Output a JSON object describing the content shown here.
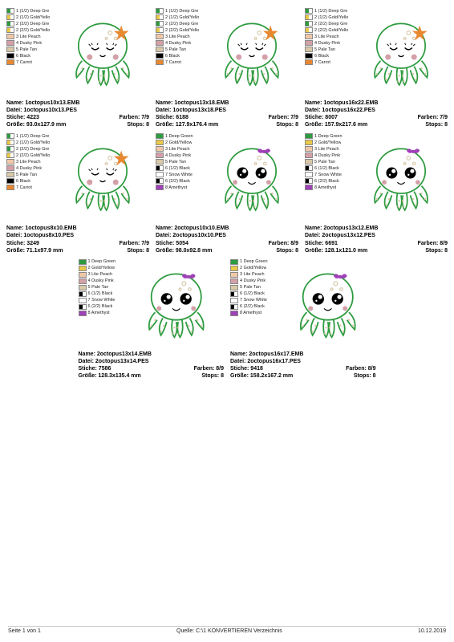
{
  "page": {
    "left": "Seite 1 von 1",
    "center": "Quelle: C:\\1 KONVERTIEREN Verzeichnis",
    "right": "10.12.2019"
  },
  "palette_a": [
    {
      "c": "#2d9b3f",
      "half": true,
      "t": "1 (1/2) Deep Gre"
    },
    {
      "c": "#e8c94a",
      "half": true,
      "t": "2 (1/2) Gold/Yello"
    },
    {
      "c": "#2d9b3f",
      "half": true,
      "t": "2 (2/2) Deep Gre"
    },
    {
      "c": "#e8c94a",
      "half": true,
      "t": "2 (2/2) Gold/Yello"
    },
    {
      "c": "#f0c8a8",
      "half": false,
      "t": "3 Lite Peach"
    },
    {
      "c": "#d4a0a8",
      "half": false,
      "t": "4 Dusky Pink"
    },
    {
      "c": "#d8c8a8",
      "half": false,
      "t": "5 Pale Tan"
    },
    {
      "c": "#000000",
      "half": false,
      "t": "6 Black"
    },
    {
      "c": "#e88830",
      "half": false,
      "t": "7 Carrot"
    }
  ],
  "palette_b": [
    {
      "c": "#2d9b3f",
      "half": false,
      "t": "1 Deep Green"
    },
    {
      "c": "#e8c94a",
      "half": false,
      "t": "2 Gold/Yellow"
    },
    {
      "c": "#f0c8a8",
      "half": false,
      "t": "3 Lite Peach"
    },
    {
      "c": "#d4a0a8",
      "half": false,
      "t": "4 Dusky Pink"
    },
    {
      "c": "#d8c8a8",
      "half": false,
      "t": "5 Pale Tan"
    },
    {
      "c": "#000000",
      "half": true,
      "t": "6 (1/2) Black"
    },
    {
      "c": "#fefefe",
      "half": false,
      "t": "7 Snow White"
    },
    {
      "c": "#000000",
      "half": true,
      "t": "6 (2/2) Black"
    },
    {
      "c": "#a040b8",
      "half": false,
      "t": "8 Amethyst"
    }
  ],
  "cards": [
    {
      "legend": "a",
      "oct": "star",
      "name": "1octopus10x13.EMB",
      "datei": "1octopus10x13.PES",
      "stiche": "4223",
      "farben": "7/9",
      "groesse": "93.0x127.9 mm",
      "stops": "8"
    },
    {
      "legend": "a",
      "oct": "star",
      "name": "1octopus13x18.EMB",
      "datei": "1octopus13x18.PES",
      "stiche": "6188",
      "farben": "7/9",
      "groesse": "127.9x176.4 mm",
      "stops": "8"
    },
    {
      "legend": "a",
      "oct": "star",
      "name": "1octopus16x22.EMB",
      "datei": "1octopus16x22.PES",
      "stiche": "8007",
      "farben": "7/9",
      "groesse": "157.9x217.6 mm",
      "stops": "8"
    },
    {
      "legend": "a",
      "oct": "star",
      "name": "1octopus8x10.EMB",
      "datei": "1octopus8x10.PES",
      "stiche": "3249",
      "farben": "7/9",
      "groesse": "71.1x97.9 mm",
      "stops": "8"
    },
    {
      "legend": "b",
      "oct": "bow",
      "name": "2octopus10x10.EMB",
      "datei": "2octopus10x10.PES",
      "stiche": "5054",
      "farben": "8/9",
      "groesse": "98.0x92.8 mm",
      "stops": "8"
    },
    {
      "legend": "b",
      "oct": "bow",
      "name": "2octopus13x12.EMB",
      "datei": "2octopus13x12.PES",
      "stiche": "6691",
      "farben": "8/9",
      "groesse": "128.1x121.0 mm",
      "stops": "8"
    },
    {
      "legend": "b",
      "oct": "bow",
      "name": "2octopus13x14.EMB",
      "datei": "2octopus13x14.PES",
      "stiche": "7586",
      "farben": "8/9",
      "groesse": "128.3x135.4 mm",
      "stops": "8"
    },
    {
      "legend": "b",
      "oct": "bow",
      "name": "2octopus16x17.EMB",
      "datei": "2octopus16x17.PES",
      "stiche": "9418",
      "farben": "8/9",
      "groesse": "158.2x167.2 mm",
      "stops": "8"
    }
  ],
  "labels": {
    "name": "Name:",
    "datei": "Datei:",
    "stiche": "Stiche:",
    "farben": "Farben:",
    "groesse": "Größe:",
    "stops": "Stops:"
  },
  "colors": {
    "outline": "#2d9b3f",
    "star": "#e88830",
    "bow": "#a040b8",
    "cheek": "#d4a0a8",
    "spot": "#d8c8a8",
    "black": "#000000",
    "white": "#fefefe"
  }
}
